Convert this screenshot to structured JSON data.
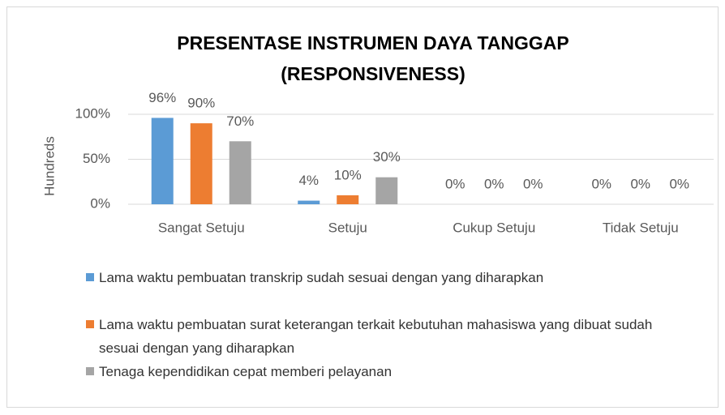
{
  "chart_data": {
    "type": "bar",
    "title": [
      "PRESENTASE INSTRUMEN DAYA TANGGAP",
      "(RESPONSIVENESS)"
    ],
    "y_label": "Hundreds",
    "categories": [
      "Sangat Setuju",
      "Setuju",
      "Cukup Setuju",
      "Tidak Setuju"
    ],
    "series": [
      {
        "name": "Lama waktu pembuatan transkrip sudah sesuai dengan yang diharapkan",
        "color": "#5b9bd5",
        "values": [
          96,
          4,
          0,
          0
        ],
        "value_labels": [
          "96%",
          "4%",
          "0%",
          "0%"
        ]
      },
      {
        "name": "Lama waktu pembuatan surat keterangan terkait kebutuhan mahasiswa yang dibuat sudah sesuai dengan yang diharapkan",
        "color": "#ed7d31",
        "values": [
          90,
          10,
          0,
          0
        ],
        "value_labels": [
          "90%",
          "10%",
          "0%",
          "0%"
        ]
      },
      {
        "name": "Tenaga kependidikan cepat memberi pelayanan",
        "color": "#a5a5a5",
        "values": [
          70,
          30,
          0,
          0
        ],
        "value_labels": [
          "70%",
          "30%",
          "0%",
          "0%"
        ]
      }
    ],
    "ylim": [
      0,
      100
    ],
    "yticks": [
      {
        "value": 0,
        "label": "0%"
      },
      {
        "value": 50,
        "label": "50%"
      },
      {
        "value": 100,
        "label": "100%"
      }
    ],
    "grid": true
  }
}
